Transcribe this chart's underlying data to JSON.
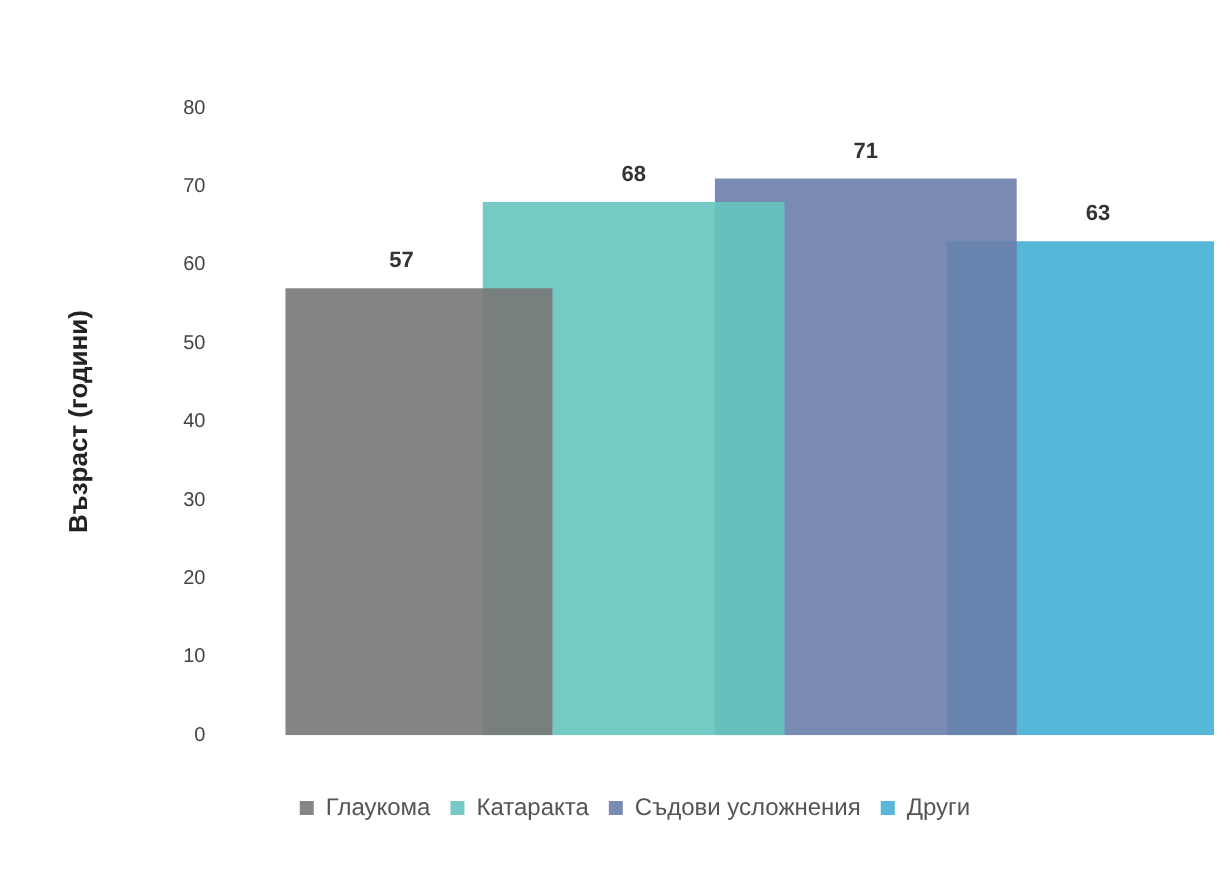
{
  "chart_data": {
    "type": "bar",
    "ylabel": "Възраст (години)",
    "categories": [
      null
    ],
    "series": [
      {
        "name": "Глаукома",
        "color": "#787878",
        "values": [
          57
        ]
      },
      {
        "name": "Катаракта",
        "color": "#66c5bd",
        "values": [
          68
        ]
      },
      {
        "name": "Съдови усложнения",
        "color": "#6a7eaa",
        "values": [
          71
        ]
      },
      {
        "name": "Други",
        "color": "#45afd5",
        "values": [
          63
        ]
      }
    ],
    "ylim": [
      0,
      80
    ],
    "yticks": [
      0,
      10,
      20,
      30,
      40,
      50,
      60,
      70,
      80
    ],
    "grid": false,
    "legend": "bottom",
    "data_labels": true
  }
}
